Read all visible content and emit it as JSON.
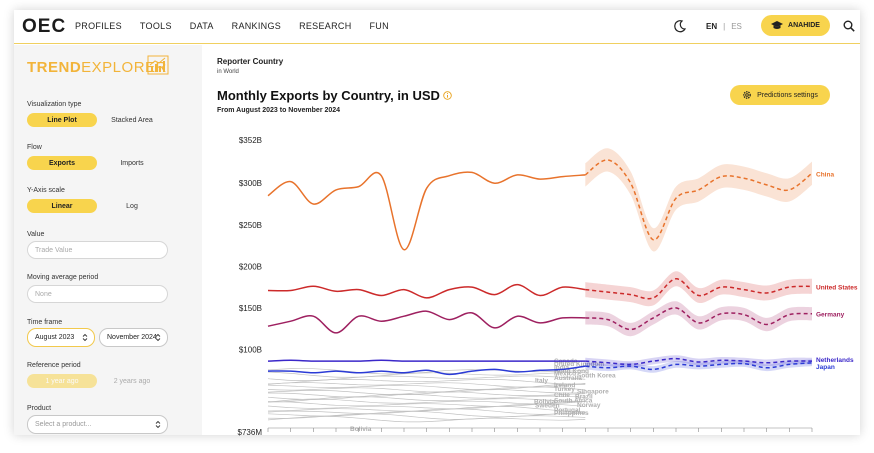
{
  "header": {
    "logo": "OEC",
    "nav": [
      "PROFILES",
      "TOOLS",
      "DATA",
      "RANKINGS",
      "RESEARCH",
      "FUN"
    ],
    "lang_en": "EN",
    "lang_sep": "|",
    "lang_es": "ES",
    "user_button": "ANAHIDE"
  },
  "sidebar": {
    "brand_bold": "TREND",
    "brand_light": "EXPLORER",
    "viz_label": "Visualization type",
    "viz_options": [
      "Line Plot",
      "Stacked Area"
    ],
    "flow_label": "Flow",
    "flow_options": [
      "Exports",
      "Imports"
    ],
    "yaxis_label": "Y-Axis scale",
    "yaxis_options": [
      "Linear",
      "Log"
    ],
    "value_label": "Value",
    "value_placeholder": "Trade Value",
    "moving_avg_label": "Moving average period",
    "moving_avg_placeholder": "None",
    "timeframe_label": "Time frame",
    "timeframe_start": "August 2023",
    "timeframe_end": "November 2024",
    "reference_label": "Reference period",
    "reference_options": [
      "1 year ago",
      "2 years ago"
    ],
    "product_label": "Product",
    "product_placeholder": "Select a product..."
  },
  "main": {
    "reporter_title": "Reporter Country",
    "reporter_sub": "in World",
    "chart_title": "Monthly Exports by Country, in USD",
    "chart_subtitle": "From August 2023 to November 2024",
    "predictions_button": "Predictions settings"
  },
  "colors": {
    "accent": "#f8d44d",
    "china": "#e8732c",
    "united_states": "#cc2a2a",
    "germany": "#9e2060",
    "netherlands": "#3b28c9",
    "japan": "#2b3bd6",
    "others": "#b5b5b5"
  },
  "chart_data": {
    "type": "line",
    "title": "Monthly Exports by Country, in USD",
    "subtitle": "From August 2023 to November 2024",
    "y_ticks": [
      "$352B",
      "$300B",
      "$250B",
      "$200B",
      "$150B",
      "$100B",
      "$736M"
    ],
    "ylim": [
      0.736,
      352
    ],
    "series": [
      {
        "name": "China",
        "color": "#e8732c",
        "actual": [
          285,
          302,
          275,
          292,
          296,
          309,
          220,
          294,
          309,
          313,
          300,
          310,
          305,
          308,
          310
        ],
        "forecast": [
          310,
          328,
          300,
          232,
          282,
          292,
          308,
          306,
          298,
          292,
          312
        ],
        "band": 14
      },
      {
        "name": "United States",
        "color": "#cc2a2a",
        "actual": [
          171,
          171,
          176,
          170,
          172,
          165,
          172,
          162,
          172,
          175,
          166,
          178,
          165,
          175,
          172
        ],
        "forecast": [
          172,
          169,
          166,
          162,
          185,
          165,
          175,
          172,
          168,
          175,
          176
        ],
        "band": 9
      },
      {
        "name": "Germany",
        "color": "#9e2060",
        "actual": [
          128,
          134,
          140,
          120,
          140,
          134,
          140,
          146,
          136,
          144,
          126,
          140,
          132,
          138,
          138
        ],
        "forecast": [
          138,
          136,
          124,
          138,
          150,
          132,
          143,
          142,
          130,
          142,
          143
        ],
        "band": 8
      },
      {
        "name": "Netherlands",
        "color": "#3b28c9",
        "actual": [
          86,
          87,
          86,
          86,
          86,
          87,
          86,
          86,
          86,
          86,
          86,
          86,
          86,
          86,
          86
        ],
        "forecast": [
          86,
          84,
          82,
          86,
          89,
          85,
          87,
          86,
          84,
          86,
          86
        ],
        "band": 4
      },
      {
        "name": "Japan",
        "color": "#2b3bd6",
        "actual": [
          74,
          74,
          72,
          74,
          72,
          74,
          72,
          75,
          70,
          74,
          76,
          73,
          75,
          76,
          80
        ],
        "forecast": [
          80,
          78,
          80,
          76,
          82,
          80,
          82,
          83,
          78,
          82,
          84
        ],
        "band": 4
      }
    ],
    "others": [
      "Canada",
      "United Kingdom",
      "India",
      "Hong Kong",
      "Mexico",
      "South Korea",
      "Australia",
      "Italy",
      "Ireland",
      "Turkey",
      "Singapore",
      "Chile",
      "Brazil",
      "Bolivia",
      "South Africa",
      "Sweden",
      "Norway",
      "Portugal",
      "Philippines"
    ],
    "labels": {
      "china": "China",
      "united_states": "United States",
      "germany": "Germany",
      "netherlands": "Netherlands",
      "japan": "Japan",
      "bolivia": "Bolivia"
    }
  }
}
